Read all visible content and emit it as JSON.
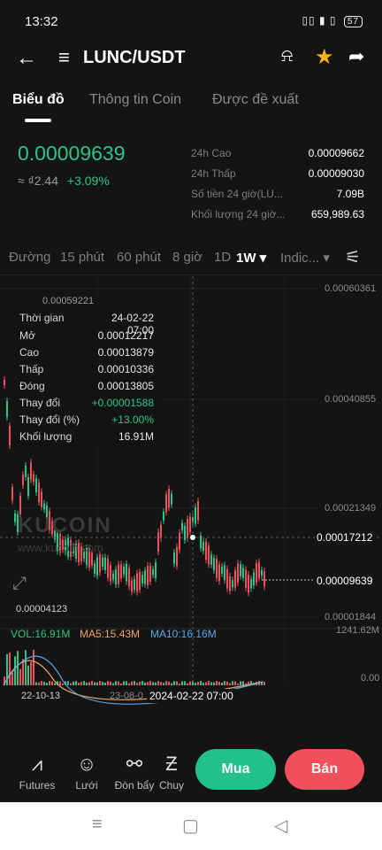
{
  "status": {
    "time": "13:32",
    "signal": "▯▯ ▮ ▯",
    "battery": "57"
  },
  "header": {
    "back_icon": "←",
    "menu_icon": "≡",
    "pair": "LUNC/USDT",
    "alert_icon": "⍾",
    "star_icon": "★",
    "share_icon": "➦"
  },
  "tabs": [
    "Biểu đồ",
    "Thông tin Coin",
    "Được đề xuất"
  ],
  "ticker": {
    "price": "0.00009639",
    "fiat": "≈ ₫2.44",
    "change": "+3.09%",
    "stats": [
      {
        "label": "24h Cao",
        "value": "0.00009662"
      },
      {
        "label": "24h Thấp",
        "value": "0.00009030"
      },
      {
        "label": "Số tiền 24 giờ(LU...",
        "value": "7.09B"
      },
      {
        "label": "Khối lượng 24 giờ...",
        "value": "659,989.63"
      }
    ]
  },
  "timeframes": [
    "Đường",
    "15 phút",
    "60 phút",
    "8 giờ",
    "1D",
    "1W ▾",
    "Indic... ▾"
  ],
  "settings_icon": "⚟",
  "chart": {
    "y_labels": [
      "0.00060361",
      "0.00040855",
      "0.00021349",
      "0.00001844"
    ],
    "top_marker": "0.00059221",
    "low_marker": "0.00004123",
    "crosshair_value": "0.00017212",
    "last_price": "0.00009639",
    "watermark": "KUCOIN",
    "watermark_url": "www.kucoin.com",
    "vol_legend": {
      "vol": "VOL:16.91M",
      "ma5": "MA5:15.43M",
      "ma10": "MA10:16.16M"
    },
    "vol_max": "1241.62M",
    "vol_min": "0.00",
    "x_labels": [
      "22-10-13",
      "23-08-0",
      "2024-02-22 07:00"
    ],
    "tooltip": [
      {
        "label": "Thời gian",
        "value": "24-02-22 07:00"
      },
      {
        "label": "Mở",
        "value": "0.00012217"
      },
      {
        "label": "Cao",
        "value": "0.00013879"
      },
      {
        "label": "Thấp",
        "value": "0.00010336"
      },
      {
        "label": "Đóng",
        "value": "0.00013805"
      },
      {
        "label": "Thay đổi",
        "value": "+0.00001588"
      },
      {
        "label": "Thay đổi (%)",
        "value": "+13.00%"
      },
      {
        "label": "Khối lượng",
        "value": "16.91M"
      }
    ],
    "colors": {
      "up": "#2bc48a",
      "down": "#f24f5c",
      "ma5": "#f0a35e",
      "ma10": "#5aa6e8"
    }
  },
  "bottom_nav": [
    {
      "label": "Futures",
      "icon": "⩘"
    },
    {
      "label": "Lưới",
      "icon": "☺"
    },
    {
      "label": "Đòn bẩy",
      "icon": "⚯"
    },
    {
      "label": "Chuy",
      "icon": "Ƶ"
    }
  ],
  "actions": {
    "buy": "Mua",
    "sell": "Bán"
  },
  "system_nav": {
    "menu": "≡",
    "home": "▢",
    "back": "◁"
  }
}
